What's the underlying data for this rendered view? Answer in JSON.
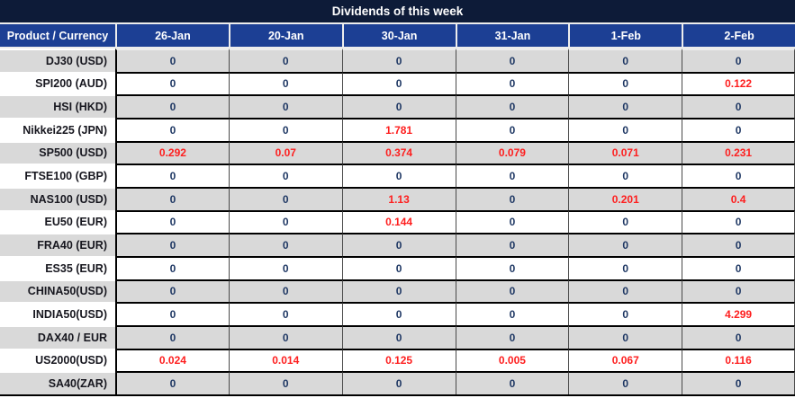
{
  "title": "Dividends of this week",
  "colors": {
    "title_bar_bg": "#0d1b38",
    "header_bg": "#1c3f94",
    "row_stripe_gray": "#d9d9d9",
    "row_stripe_white": "#ffffff",
    "value_text": "#1f3864",
    "nonzero_value_red": "#fe1e1e",
    "label_text": "#17171f",
    "grid_line": "#000000"
  },
  "chart_data": {
    "type": "table",
    "title": "Dividends of this week",
    "columns": [
      "Product / Currency",
      "26-Jan",
      "20-Jan",
      "30-Jan",
      "31-Jan",
      "1-Feb",
      "2-Feb"
    ],
    "rows": [
      {
        "label": "DJ30 (USD)",
        "values": [
          0,
          0,
          0,
          0,
          0,
          0
        ]
      },
      {
        "label": "SPI200 (AUD)",
        "values": [
          0,
          0,
          0,
          0,
          0,
          0.122
        ]
      },
      {
        "label": "HSI (HKD)",
        "values": [
          0,
          0,
          0,
          0,
          0,
          0
        ]
      },
      {
        "label": "Nikkei225 (JPN)",
        "values": [
          0,
          0,
          1.781,
          0,
          0,
          0
        ]
      },
      {
        "label": "SP500 (USD)",
        "values": [
          0.292,
          0.07,
          0.374,
          0.079,
          0.071,
          0.231
        ]
      },
      {
        "label": "FTSE100 (GBP)",
        "values": [
          0,
          0,
          0,
          0,
          0,
          0
        ]
      },
      {
        "label": "NAS100 (USD)",
        "values": [
          0,
          0,
          1.13,
          0,
          0.201,
          0.4
        ]
      },
      {
        "label": "EU50 (EUR)",
        "values": [
          0,
          0,
          0.144,
          0,
          0,
          0
        ]
      },
      {
        "label": "FRA40 (EUR)",
        "values": [
          0,
          0,
          0,
          0,
          0,
          0
        ]
      },
      {
        "label": "ES35 (EUR)",
        "values": [
          0,
          0,
          0,
          0,
          0,
          0
        ]
      },
      {
        "label": "CHINA50(USD)",
        "values": [
          0,
          0,
          0,
          0,
          0,
          0
        ]
      },
      {
        "label": "INDIA50(USD)",
        "values": [
          0,
          0,
          0,
          0,
          0,
          4.299
        ]
      },
      {
        "label": "DAX40 / EUR",
        "values": [
          0,
          0,
          0,
          0,
          0,
          0
        ]
      },
      {
        "label": "US2000(USD)",
        "values": [
          0.024,
          0.014,
          0.125,
          0.005,
          0.067,
          0.116
        ]
      },
      {
        "label": "SA40(ZAR)",
        "values": [
          0,
          0,
          0,
          0,
          0,
          0
        ]
      }
    ],
    "style_notes": {
      "row_striping": "alternating gray/white starting gray",
      "value_highlight_rule": "non-zero dividend values rendered in red"
    }
  }
}
